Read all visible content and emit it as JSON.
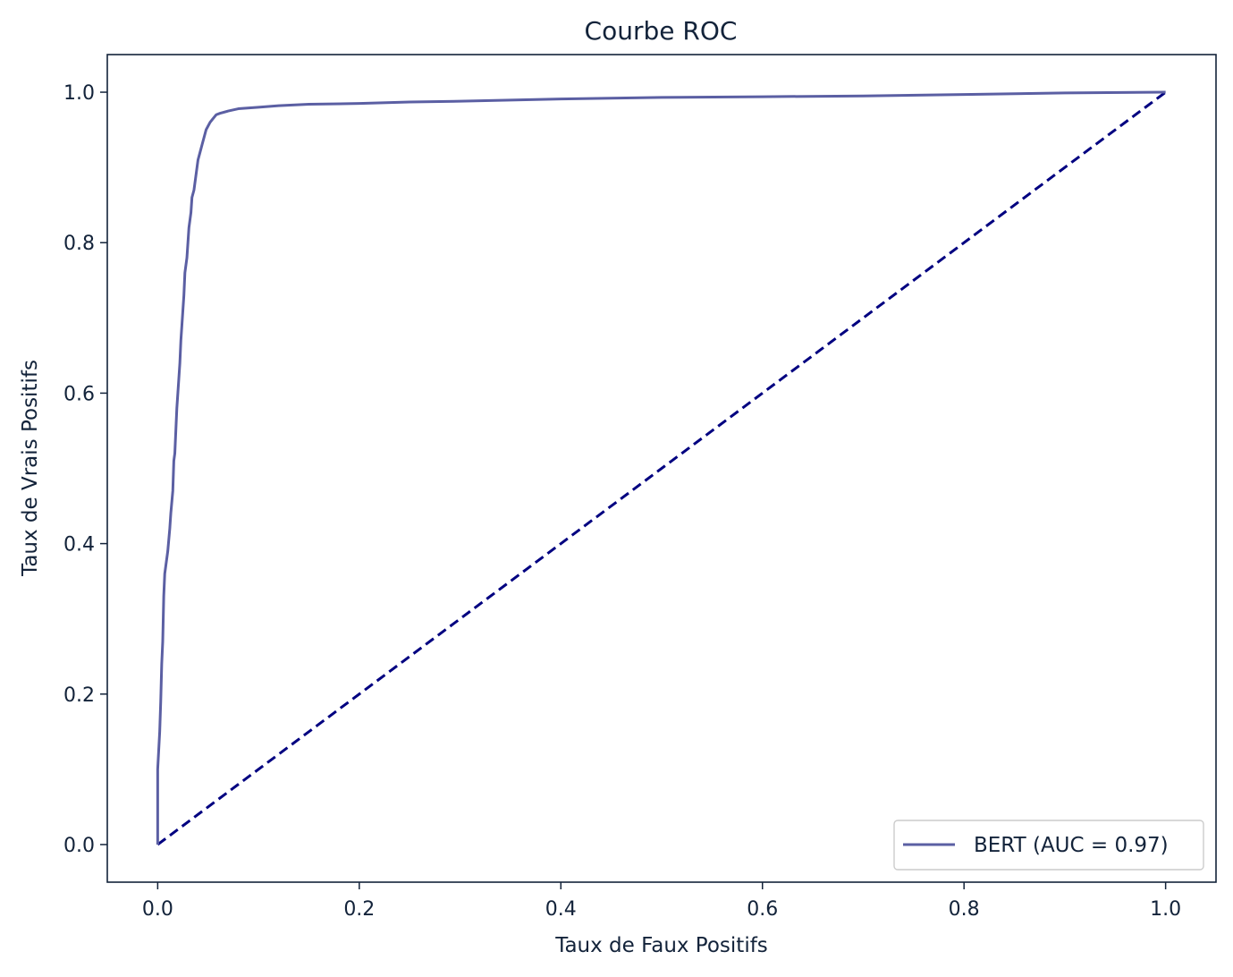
{
  "chart_data": {
    "type": "line",
    "title": "Courbe ROC",
    "xlabel": "Taux de Faux Positifs",
    "ylabel": "Taux de Vrais Positifs",
    "xlim": [
      -0.05,
      1.05
    ],
    "ylim": [
      -0.05,
      1.05
    ],
    "xticks": [
      0.0,
      0.2,
      0.4,
      0.6,
      0.8,
      1.0
    ],
    "xtick_labels": [
      "0.0",
      "0.2",
      "0.4",
      "0.6",
      "0.8",
      "1.0"
    ],
    "yticks": [
      0.0,
      0.2,
      0.4,
      0.6,
      0.8,
      1.0
    ],
    "ytick_labels": [
      "0.0",
      "0.2",
      "0.4",
      "0.6",
      "0.8",
      "1.0"
    ],
    "grid": false,
    "legend_position": "lower-right",
    "series": [
      {
        "name": "BERT (AUC = 0.97)",
        "style": "solid",
        "color": "#5b5fa3",
        "x": [
          0.0,
          0.0,
          0.002,
          0.003,
          0.004,
          0.005,
          0.006,
          0.007,
          0.008,
          0.01,
          0.012,
          0.013,
          0.015,
          0.016,
          0.017,
          0.018,
          0.019,
          0.02,
          0.021,
          0.022,
          0.023,
          0.024,
          0.025,
          0.026,
          0.027,
          0.029,
          0.03,
          0.031,
          0.033,
          0.034,
          0.036,
          0.038,
          0.04,
          0.042,
          0.044,
          0.046,
          0.048,
          0.05,
          0.052,
          0.055,
          0.058,
          0.062,
          0.07,
          0.08,
          0.1,
          0.12,
          0.15,
          0.2,
          0.25,
          0.3,
          0.4,
          0.5,
          0.6,
          0.7,
          0.8,
          0.9,
          1.0
        ],
        "y": [
          0.0,
          0.1,
          0.15,
          0.19,
          0.24,
          0.27,
          0.33,
          0.36,
          0.37,
          0.39,
          0.42,
          0.44,
          0.47,
          0.51,
          0.52,
          0.55,
          0.58,
          0.6,
          0.62,
          0.64,
          0.67,
          0.69,
          0.71,
          0.73,
          0.76,
          0.78,
          0.8,
          0.82,
          0.84,
          0.86,
          0.87,
          0.89,
          0.91,
          0.92,
          0.93,
          0.94,
          0.95,
          0.955,
          0.96,
          0.965,
          0.97,
          0.972,
          0.975,
          0.978,
          0.98,
          0.982,
          0.984,
          0.985,
          0.987,
          0.988,
          0.991,
          0.993,
          0.994,
          0.995,
          0.997,
          0.999,
          1.0
        ]
      },
      {
        "style": "dashed",
        "color": "#000080",
        "x": [
          0.0,
          1.0
        ],
        "y": [
          0.0,
          1.0
        ]
      }
    ]
  }
}
